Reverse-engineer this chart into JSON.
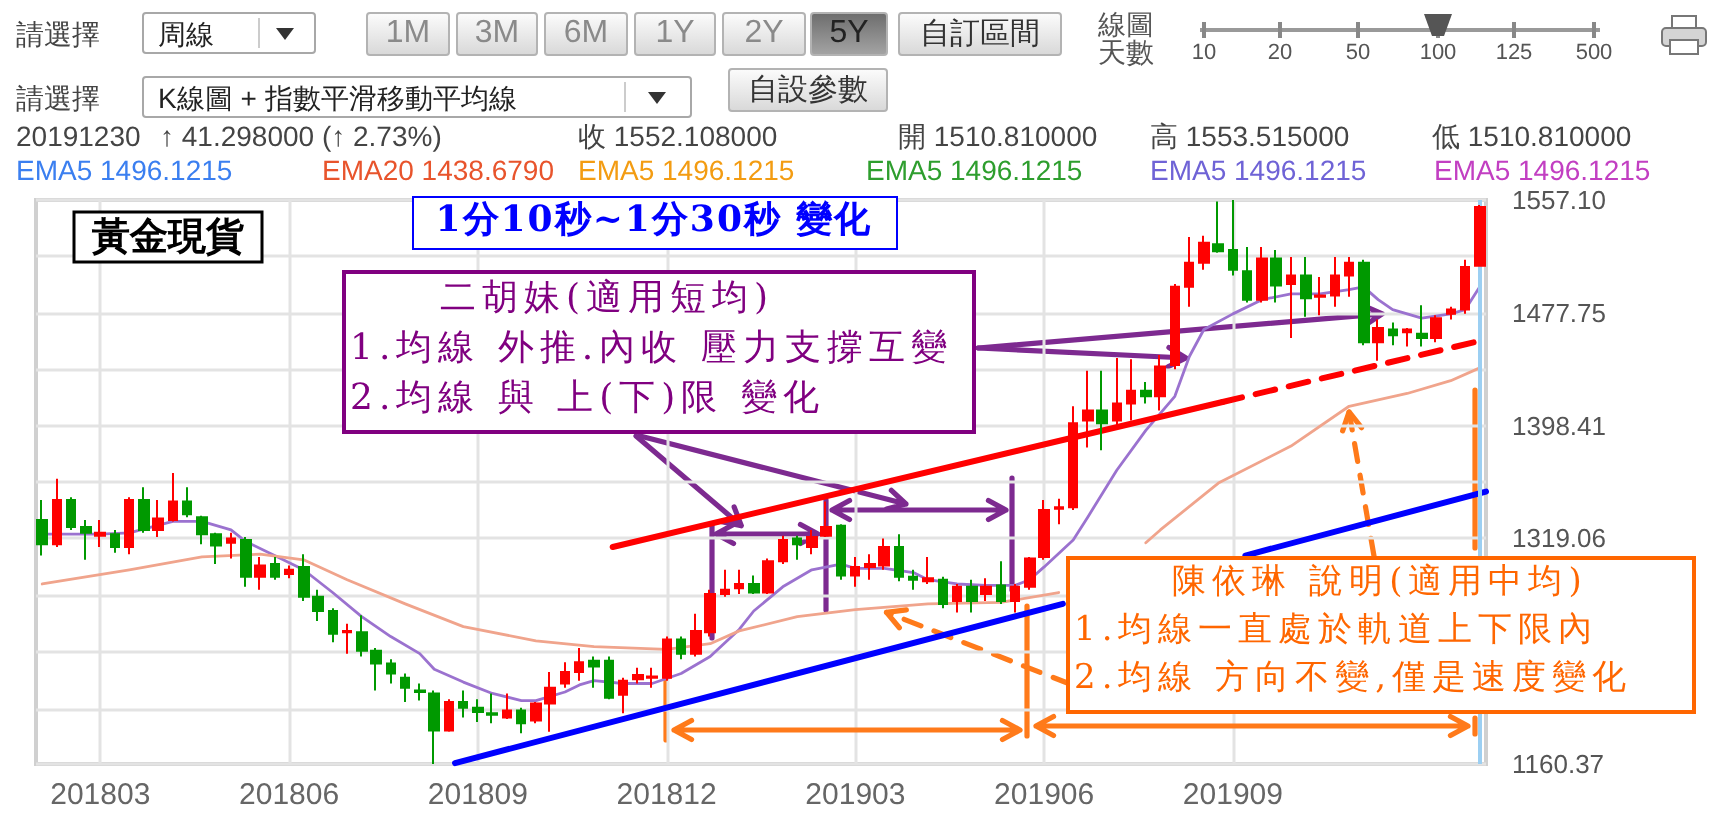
{
  "chart_data": {
    "type": "candlestick",
    "title": "黃金現貨",
    "annotations": [
      "請選擇",
      "周線",
      "1M",
      "3M",
      "6M",
      "1Y",
      "2Y",
      "5Y",
      "自訂區間",
      "線圖天數",
      "10",
      "20",
      "50",
      "100",
      "125",
      "500",
      "請選擇",
      "K線圖 + 指數平滑移動平均線",
      "自設參數",
      "20191230",
      "↑ 41.298000 (↑ 2.73%)",
      "收 1552.108000",
      "開 1510.810000",
      "高 1553.515000",
      "低 1510.810000",
      "EMA5 1496.1215",
      "EMA20 1438.6790",
      "EMA5 1496.1215",
      "EMA5 1496.1215",
      "EMA5 1496.1215",
      "EMA5 1496.1215",
      "1分10秒~1分30秒 變化",
      "二胡妹(適用短均)",
      {
        "text": "1.均線 外推.內收 壓力支撐互變",
        "x": "2019-11-13",
        "y": 1477
      },
      {
        "text": "2.均線 與 上(下)限 變化",
        "x": "2019-01-08",
        "y": 1328
      },
      {
        "text": "陳依琳 說明(適用中均)",
        "x": "2019-10-28",
        "y": 1408
      },
      "1.均線一直處於軌道上下限內",
      {
        "text": "2.均線 方向不變,僅是速度變化",
        "x": "2019-03-19",
        "y": 1267
      }
    ],
    "x": [
      "2018-02-05",
      "2018-02-12",
      "2018-02-19",
      "2018-02-26",
      "2018-03-05",
      "2018-03-12",
      "2018-03-19",
      "2018-03-26",
      "2018-04-02",
      "2018-04-09",
      "2018-04-16",
      "2018-04-23",
      "2018-04-30",
      "2018-05-07",
      "2018-05-14",
      "2018-05-21",
      "2018-05-28",
      "2018-06-04",
      "2018-06-11",
      "2018-06-18",
      "2018-06-25",
      "2018-07-02",
      "2018-07-09",
      "2018-07-16",
      "2018-07-23",
      "2018-07-30",
      "2018-08-06",
      "2018-08-13",
      "2018-08-20",
      "2018-08-27",
      "2018-09-03",
      "2018-09-10",
      "2018-09-17",
      "2018-09-24",
      "2018-10-01",
      "2018-10-08",
      "2018-10-15",
      "2018-10-22",
      "2018-10-29",
      "2018-11-05",
      "2018-11-12",
      "2018-11-19",
      "2018-11-26",
      "2018-12-03",
      "2018-12-10",
      "2018-12-17",
      "2018-12-24",
      "2018-12-31",
      "2019-01-07",
      "2019-01-14",
      "2019-01-21",
      "2019-01-28",
      "2019-02-04",
      "2019-02-11",
      "2019-02-18",
      "2019-02-25",
      "2019-03-04",
      "2019-03-11",
      "2019-03-18",
      "2019-03-25",
      "2019-04-01",
      "2019-04-08",
      "2019-04-15",
      "2019-04-22",
      "2019-04-29",
      "2019-05-06",
      "2019-05-13",
      "2019-05-20",
      "2019-05-27",
      "2019-06-03",
      "2019-06-10",
      "2019-06-17",
      "2019-06-24",
      "2019-07-01",
      "2019-07-08",
      "2019-07-15",
      "2019-07-22",
      "2019-07-29",
      "2019-08-05",
      "2019-08-12",
      "2019-08-19",
      "2019-08-26",
      "2019-09-02",
      "2019-09-09",
      "2019-09-16",
      "2019-09-23",
      "2019-09-30",
      "2019-10-07",
      "2019-10-14",
      "2019-10-21",
      "2019-10-28",
      "2019-11-04",
      "2019-11-11",
      "2019-11-18",
      "2019-11-25",
      "2019-12-02",
      "2019-12-09",
      "2019-12-16",
      "2019-12-23",
      "2019-12-30"
    ],
    "xlim": [
      "2018-02-02",
      "2020-01-02"
    ],
    "xticks": [
      {
        "value": "2018-03-05",
        "label": "201803"
      },
      {
        "value": "2018-06-04",
        "label": "201806"
      },
      {
        "value": "2018-09-03",
        "label": "201809"
      },
      {
        "value": "2018-12-03",
        "label": "201812"
      },
      {
        "value": "2019-03-04",
        "label": "201903"
      },
      {
        "value": "2019-06-03",
        "label": "201906"
      },
      {
        "value": "2019-09-02",
        "label": "201909"
      }
    ],
    "ylim": [
      1160.37,
      1557.1
    ],
    "yticks": [
      1160.37,
      {
        "value": 1199.04,
        "label": null
      },
      {
        "value": 1239.72,
        "label": null
      },
      {
        "value": 1279.39,
        "label": null
      },
      1319.06,
      {
        "value": 1358.74,
        "label": null
      },
      1398.41,
      {
        "value": 1438.08,
        "label": null
      },
      1477.75,
      {
        "value": 1517.43,
        "label": null
      },
      {
        "value": 1557.1,
        "label": "1557.10"
      }
    ],
    "grid": true,
    "ohlc": [
      [
        1332,
        1346,
        1307,
        1315
      ],
      [
        1315,
        1361,
        1313,
        1346
      ],
      [
        1346,
        1348,
        1325,
        1327
      ],
      [
        1327,
        1332,
        1304,
        1323
      ],
      [
        1321,
        1332,
        1313,
        1323
      ],
      [
        1322,
        1325,
        1309,
        1313
      ],
      [
        1313,
        1348,
        1308,
        1346
      ],
      [
        1346,
        1355,
        1323,
        1325
      ],
      [
        1325,
        1346,
        1320,
        1333
      ],
      [
        1332,
        1365,
        1331,
        1345
      ],
      [
        1345,
        1355,
        1334,
        1336
      ],
      [
        1334,
        1335,
        1315,
        1322
      ],
      [
        1322,
        1323,
        1301,
        1314
      ],
      [
        1316,
        1323,
        1305,
        1319
      ],
      [
        1318,
        1320,
        1285,
        1292
      ],
      [
        1292,
        1306,
        1283,
        1300
      ],
      [
        1301,
        1306,
        1290,
        1292
      ],
      [
        1294,
        1300,
        1291,
        1297
      ],
      [
        1299,
        1308,
        1275,
        1278
      ],
      [
        1278,
        1283,
        1261,
        1268
      ],
      [
        1268,
        1270,
        1246,
        1252
      ],
      [
        1253,
        1259,
        1238,
        1254
      ],
      [
        1253,
        1265,
        1236,
        1240
      ],
      [
        1240,
        1242,
        1212,
        1231
      ],
      [
        1231,
        1234,
        1217,
        1224
      ],
      [
        1221,
        1224,
        1204,
        1214
      ],
      [
        1212,
        1217,
        1205,
        1211
      ],
      [
        1210,
        1212,
        1160.37,
        1184
      ],
      [
        1184,
        1206,
        1183,
        1204
      ],
      [
        1204,
        1212,
        1193,
        1200
      ],
      [
        1200,
        1206,
        1190,
        1197
      ],
      [
        1196,
        1210,
        1189,
        1195
      ],
      [
        1193,
        1210,
        1192,
        1198
      ],
      [
        1198,
        1200,
        1182,
        1189
      ],
      [
        1191,
        1204,
        1189,
        1203
      ],
      [
        1203,
        1225,
        1183,
        1214
      ],
      [
        1217,
        1232,
        1214,
        1225
      ],
      [
        1225,
        1242,
        1219,
        1232
      ],
      [
        1233,
        1236,
        1214,
        1229
      ],
      [
        1233,
        1236,
        1206,
        1207
      ],
      [
        1209,
        1221,
        1196,
        1219
      ],
      [
        1220,
        1228,
        1217,
        1223
      ],
      [
        1221,
        1228,
        1214,
        1222
      ],
      [
        1221,
        1250,
        1219,
        1248
      ],
      [
        1248,
        1250,
        1234,
        1238
      ],
      [
        1238,
        1266,
        1236,
        1254
      ],
      [
        1253,
        1283,
        1250,
        1280
      ],
      [
        1280,
        1297,
        1278,
        1283
      ],
      [
        1284,
        1297,
        1280,
        1287
      ],
      [
        1287,
        1293,
        1280,
        1281
      ],
      [
        1281,
        1305,
        1280,
        1303
      ],
      [
        1303,
        1321,
        1301,
        1318
      ],
      [
        1319,
        1321,
        1304,
        1315
      ],
      [
        1313,
        1325,
        1308,
        1320
      ],
      [
        1321,
        1345,
        1320,
        1327
      ],
      [
        1328,
        1329,
        1290,
        1293
      ],
      [
        1293,
        1306,
        1285,
        1299
      ],
      [
        1299,
        1308,
        1290,
        1301
      ],
      [
        1300,
        1319,
        1297,
        1313
      ],
      [
        1313,
        1322,
        1289,
        1292
      ],
      [
        1292,
        1297,
        1283,
        1290
      ],
      [
        1289,
        1306,
        1287,
        1291
      ],
      [
        1290,
        1292,
        1270,
        1273
      ],
      [
        1275,
        1287,
        1267,
        1285
      ],
      [
        1285,
        1290,
        1267,
        1275
      ],
      [
        1280,
        1291,
        1275,
        1285
      ],
      [
        1286,
        1303,
        1273,
        1275
      ],
      [
        1275,
        1287,
        1267,
        1285
      ],
      [
        1285,
        1306,
        1283,
        1305
      ],
      [
        1306,
        1346,
        1304,
        1339
      ],
      [
        1340,
        1347,
        1329,
        1341
      ],
      [
        1341,
        1412,
        1339,
        1400
      ],
      [
        1402,
        1437,
        1383,
        1409
      ],
      [
        1409,
        1437,
        1381,
        1400
      ],
      [
        1402,
        1446,
        1398,
        1414
      ],
      [
        1414,
        1445,
        1402,
        1423
      ],
      [
        1423,
        1429,
        1414,
        1419
      ],
      [
        1419,
        1448,
        1409,
        1440
      ],
      [
        1441,
        1498,
        1438,
        1496
      ],
      [
        1496,
        1531,
        1482,
        1513
      ],
      [
        1513,
        1532,
        1508,
        1527
      ],
      [
        1526,
        1556,
        1520,
        1521
      ],
      [
        1522,
        1557.1,
        1504,
        1508
      ],
      [
        1507,
        1524,
        1485,
        1487
      ],
      [
        1487,
        1524,
        1485,
        1516
      ],
      [
        1516,
        1522,
        1485,
        1497
      ],
      [
        1498,
        1517,
        1460,
        1504
      ],
      [
        1504,
        1517,
        1475,
        1488
      ],
      [
        1489,
        1503,
        1476,
        1490
      ],
      [
        1490,
        1517,
        1482,
        1504
      ],
      [
        1504,
        1517,
        1489,
        1513
      ],
      [
        1513,
        1515,
        1455,
        1457
      ],
      [
        1457,
        1473,
        1444,
        1467
      ],
      [
        1466,
        1471,
        1455,
        1462
      ],
      [
        1464,
        1467,
        1454,
        1466
      ],
      [
        1463,
        1483,
        1454,
        1460
      ],
      [
        1460,
        1476,
        1457,
        1474
      ],
      [
        1477,
        1482,
        1473,
        1480
      ],
      [
        1480,
        1515,
        1477,
        1510
      ],
      [
        1510.81,
        1553.515,
        1510.81,
        1552.108
      ]
    ],
    "colors": [
      "#009900",
      "#ff0000",
      "#009900",
      "#009900",
      "#ff0000",
      "#009900",
      "#ff0000",
      "#009900",
      "#ff0000",
      "#ff0000",
      "#009900",
      "#009900",
      "#009900",
      "#ff0000",
      "#009900",
      "#ff0000",
      "#009900",
      "#ff0000",
      "#009900",
      "#009900",
      "#009900",
      "#ff0000",
      "#009900",
      "#009900",
      "#009900",
      "#009900",
      "#009900",
      "#009900",
      "#ff0000",
      "#009900",
      "#009900",
      "#009900",
      "#ff0000",
      "#009900",
      "#ff0000",
      "#ff0000",
      "#ff0000",
      "#ff0000",
      "#009900",
      "#009900",
      "#ff0000",
      "#ff0000",
      "#ff0000",
      "#ff0000",
      "#009900",
      "#ff0000",
      "#ff0000",
      "#ff0000",
      "#ff0000",
      "#009900",
      "#ff0000",
      "#ff0000",
      "#009900",
      "#ff0000",
      "#ff0000",
      "#009900",
      "#ff0000",
      "#ff0000",
      "#ff0000",
      "#009900",
      "#009900",
      "#ff0000",
      "#009900",
      "#ff0000",
      "#009900",
      "#ff0000",
      "#009900",
      "#ff0000",
      "#ff0000",
      "#ff0000",
      "#ff0000",
      "#ff0000",
      "#ff0000",
      "#009900",
      "#ff0000",
      "#ff0000",
      "#009900",
      "#ff0000",
      "#ff0000",
      "#ff0000",
      "#ff0000",
      "#009900",
      "#009900",
      "#009900",
      "#ff0000",
      "#009900",
      "#ff0000",
      "#009900",
      "#ff0000",
      "#ff0000",
      "#ff0000",
      "#009900",
      "#ff0000",
      "#009900",
      "#ff0000",
      "#009900",
      "#ff0000",
      "#ff0000",
      "#ff0000",
      "#ff0000"
    ],
    "series": [
      {
        "type": "line",
        "color": "#9b72cf",
        "x": [
          "2018-02-05",
          "2018-03-05",
          "2018-03-19",
          "2018-04-09",
          "2018-04-23",
          "2018-05-07",
          "2018-05-14",
          "2018-05-28",
          "2018-06-11",
          "2018-06-25",
          "2018-07-09",
          "2018-07-23",
          "2018-08-06",
          "2018-08-13",
          "2018-08-27",
          "2018-09-10",
          "2018-09-24",
          "2018-10-01",
          "2018-10-15",
          "2018-10-22",
          "2018-10-29",
          "2018-11-12",
          "2018-11-26",
          "2018-12-10",
          "2018-12-24",
          "2019-01-07",
          "2019-01-14",
          "2019-01-28",
          "2019-02-11",
          "2019-02-25",
          "2019-03-04",
          "2019-03-18",
          "2019-04-01",
          "2019-04-08",
          "2019-04-22",
          "2019-05-06",
          "2019-05-20",
          "2019-05-27",
          "2019-06-03",
          "2019-06-17",
          "2019-06-24",
          "2019-07-08",
          "2019-07-22",
          "2019-08-05",
          "2019-08-12",
          "2019-08-19",
          "2019-09-02",
          "2019-09-16",
          "2019-09-30",
          "2019-10-14",
          "2019-10-28",
          "2019-11-04",
          "2019-11-11",
          "2019-11-18",
          "2019-12-02",
          "2019-12-16",
          "2019-12-23",
          "2019-12-30"
        ],
        "values": [
          1322,
          1322,
          1323,
          1331,
          1331,
          1325,
          1317,
          1307,
          1297,
          1281,
          1264,
          1250,
          1238,
          1227,
          1218,
          1210,
          1205,
          1205,
          1211,
          1216,
          1219,
          1217,
          1217,
          1224,
          1236,
          1255,
          1268,
          1285,
          1297,
          1301,
          1298,
          1298,
          1295,
          1290,
          1287,
          1286,
          1286,
          1290,
          1299,
          1318,
          1334,
          1367,
          1395,
          1419,
          1447,
          1466,
          1477,
          1487,
          1491,
          1491,
          1494,
          1496,
          1487,
          1480,
          1474,
          1477,
          1480,
          1496
        ]
      },
      {
        "type": "line",
        "color": "#f0a48c",
        "x": [
          "2018-02-05",
          "2018-03-19",
          "2018-04-23",
          "2018-05-21",
          "2018-06-11",
          "2018-07-02",
          "2018-07-30",
          "2018-08-27",
          "2018-10-01",
          "2018-10-29",
          "2018-12-03",
          "2018-12-24",
          "2019-01-07",
          "2019-02-04",
          "2019-03-04",
          "2019-04-08",
          "2019-05-13",
          "2019-06-10",
          "2019-07-01",
          "2019-07-22",
          "2019-07-29",
          "2019-08-26",
          "2019-09-30",
          "2019-10-28",
          "2019-11-25",
          "2019-12-16",
          "2019-12-30"
        ],
        "values": [
          1287,
          1297,
          1306,
          1308,
          1304,
          1290,
          1273,
          1257,
          1247,
          1243,
          1241,
          1245,
          1254,
          1264,
          1269,
          1273,
          1274,
          1281,
          null,
          1316,
          1325,
          1358,
          1384,
          1412,
          1421,
          1430,
          1439
        ]
      },
      {
        "type": "line",
        "color": "#ff0000",
        "x": [
          "2018-11-07",
          "2019-08-28"
        ],
        "values": [
          1313,
          1415
        ]
      },
      {
        "type": "line",
        "color": "#ff0000",
        "line_style": "dashed",
        "x": [
          "2019-08-28",
          "2020-01-02"
        ],
        "values": [
          1415,
          1459
        ]
      },
      {
        "type": "line",
        "color": "#0000ff",
        "x": [
          "2018-08-23",
          "2019-06-12",
          "2019-07-31",
          "2019-09-08",
          "2020-01-02"
        ],
        "values": [
          1161,
          1273,
          null,
          1307,
          1352
        ]
      }
    ],
    "ref_lines": [
      {
        "axis": "x",
        "value": "2019-12-30",
        "color": "#9ccff2"
      }
    ]
  }
}
